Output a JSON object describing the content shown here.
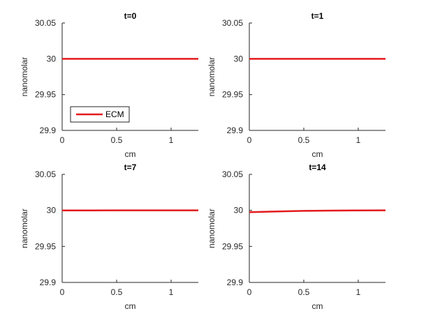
{
  "chart_data": [
    {
      "type": "line",
      "title": "t=0",
      "xlabel": "cm",
      "ylabel": "nanomolar",
      "xlim": [
        0,
        1.25
      ],
      "ylim": [
        29.9,
        30.05
      ],
      "xticks": [
        "0",
        "0.5",
        "1"
      ],
      "yticks": [
        "29.9",
        "29.95",
        "30",
        "30.05"
      ],
      "grid": false,
      "legend": {
        "placement": "bottom-left",
        "entries": [
          "ECM"
        ]
      },
      "series": [
        {
          "name": "ECM",
          "color": "#e41a1c",
          "x": [
            0,
            0.25,
            0.5,
            0.75,
            1.0,
            1.25
          ],
          "y": [
            30,
            30,
            30,
            30,
            30,
            30
          ]
        }
      ]
    },
    {
      "type": "line",
      "title": "t=1",
      "xlabel": "cm",
      "ylabel": "nanomolar",
      "xlim": [
        0,
        1.25
      ],
      "ylim": [
        29.9,
        30.05
      ],
      "xticks": [
        "0",
        "0.5",
        "1"
      ],
      "yticks": [
        "29.9",
        "29.95",
        "30",
        "30.05"
      ],
      "grid": false,
      "series": [
        {
          "color": "#e41a1c",
          "x": [
            0,
            0.25,
            0.5,
            0.75,
            1.0,
            1.25
          ],
          "y": [
            30,
            30,
            30,
            30,
            30,
            30
          ]
        }
      ]
    },
    {
      "type": "line",
      "title": "t=7",
      "xlabel": "cm",
      "ylabel": "nanomolar",
      "xlim": [
        0,
        1.25
      ],
      "ylim": [
        29.9,
        30.05
      ],
      "xticks": [
        "0",
        "0.5",
        "1"
      ],
      "yticks": [
        "29.9",
        "29.95",
        "30",
        "30.05"
      ],
      "grid": false,
      "series": [
        {
          "color": "#e41a1c",
          "x": [
            0,
            0.25,
            0.5,
            0.75,
            1.0,
            1.25
          ],
          "y": [
            29.9999,
            29.99995,
            30,
            30,
            30,
            30
          ]
        }
      ]
    },
    {
      "type": "line",
      "title": "t=14",
      "xlabel": "cm",
      "ylabel": "nanomolar",
      "xlim": [
        0,
        1.25
      ],
      "ylim": [
        29.9,
        30.05
      ],
      "xticks": [
        "0",
        "0.5",
        "1"
      ],
      "yticks": [
        "29.9",
        "29.95",
        "30",
        "30.05"
      ],
      "grid": false,
      "series": [
        {
          "color": "#e41a1c",
          "x": [
            0,
            0.25,
            0.5,
            0.75,
            1.0,
            1.25
          ],
          "y": [
            29.9975,
            29.9985,
            29.9993,
            29.9997,
            29.9999,
            30
          ]
        }
      ]
    }
  ]
}
